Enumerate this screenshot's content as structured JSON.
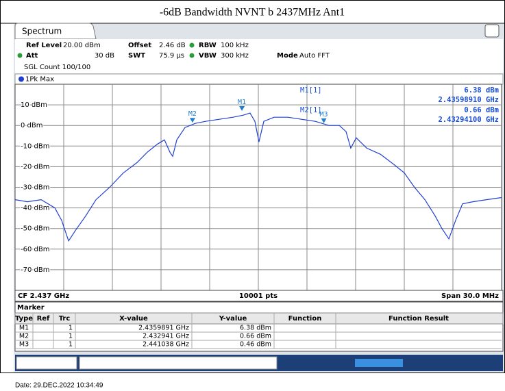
{
  "title": "-6dB Bandwidth NVNT b 2437MHz Ant1",
  "date": "Date: 29.DEC.2022 10:34:49",
  "header": {
    "tab": "Spectrum",
    "ref_level_label": "Ref Level",
    "ref_level": "20.00 dBm",
    "offset_label": "Offset",
    "offset": "2.46 dB",
    "rbw_label": "RBW",
    "rbw": "100 kHz",
    "att_label": "Att",
    "att": "30 dB",
    "swt_label": "SWT",
    "swt": "75.9 µs",
    "vbw_label": "VBW",
    "vbw": "300 kHz",
    "mode_label": "Mode",
    "mode": "Auto FFT",
    "sgl": "SGL Count 100/100"
  },
  "readout": [
    {
      "name": "M1[1]",
      "level": "6.38 dBm",
      "freq": "2.43598910 GHz"
    },
    {
      "name": "M2[1]",
      "level": "0.66 dBm",
      "freq": "2.43294100 GHz"
    }
  ],
  "footer": {
    "cf": "CF 2.437 GHz",
    "pts": "10001 pts",
    "span": "Span 30.0 MHz"
  },
  "marker_table": {
    "title": "Marker",
    "columns": [
      "Type",
      "Ref",
      "Trc",
      "X-value",
      "Y-value",
      "Function",
      "Function Result"
    ],
    "rows": [
      {
        "type": "M1",
        "trc": "1",
        "x": "2.4359891 GHz",
        "y": "6.38 dBm"
      },
      {
        "type": "M2",
        "trc": "1",
        "x": "2.432941 GHz",
        "y": "0.66 dBm"
      },
      {
        "type": "M3",
        "trc": "1",
        "x": "2.441038 GHz",
        "y": "0.46 dBm"
      }
    ]
  },
  "chart_data": {
    "type": "line",
    "xlim": [
      2.422,
      2.452
    ],
    "ylim": [
      -80,
      20
    ],
    "yticks": [
      {
        "value": 10,
        "label": "10 dBm"
      },
      {
        "value": 0,
        "label": "0 dBm"
      },
      {
        "value": -10,
        "label": "-10 dBm"
      },
      {
        "value": -20,
        "label": "-20 dBm"
      },
      {
        "value": -30,
        "label": "-30 dBm"
      },
      {
        "value": -40,
        "label": "-40 dBm"
      },
      {
        "value": -50,
        "label": "-50 dBm"
      },
      {
        "value": -60,
        "label": "-60 dBm"
      },
      {
        "value": -70,
        "label": "-70 dBm"
      }
    ],
    "grid": true,
    "x": [
      2.422,
      2.42276,
      2.42361,
      2.42445,
      2.42487,
      2.4253,
      2.42572,
      2.42635,
      2.42699,
      2.42783,
      2.42868,
      2.42952,
      2.43015,
      2.43079,
      2.43121,
      2.43155,
      2.43172,
      2.43197,
      2.43248,
      2.43311,
      2.43375,
      2.43459,
      2.43544,
      2.43607,
      2.43649,
      2.43679,
      2.43704,
      2.43734,
      2.43797,
      2.43882,
      2.43966,
      2.44051,
      2.44135,
      2.44199,
      2.44241,
      2.4427,
      2.44304,
      2.44368,
      2.44453,
      2.44537,
      2.446,
      2.44663,
      2.44727,
      2.44791,
      2.44832,
      2.44875,
      2.44917,
      2.44959,
      2.45023,
      2.45107,
      2.452
    ],
    "series": [
      {
        "name": "1Pk Max",
        "color": "#1f3fd0",
        "values": [
          -36,
          -37,
          -36,
          -40,
          -46,
          -56,
          -51,
          -44,
          -36,
          -30,
          -23,
          -18,
          -13,
          -9,
          -7,
          -13,
          -15,
          -7,
          -1,
          1,
          2,
          3,
          4,
          5,
          6,
          2,
          -8,
          2,
          4,
          4,
          3,
          2,
          0,
          0,
          -3,
          -11,
          -6,
          -11,
          -14,
          -19,
          -23,
          -30,
          -36,
          -44,
          -50,
          -55,
          -46,
          -38,
          -37,
          -36,
          -35
        ]
      }
    ],
    "markers": [
      {
        "label": "M1",
        "x": 2.4359891,
        "y": 6.38
      },
      {
        "label": "M2",
        "x": 2.432941,
        "y": 0.66
      },
      {
        "label": "M3",
        "x": 2.441038,
        "y": 0.46
      }
    ]
  }
}
